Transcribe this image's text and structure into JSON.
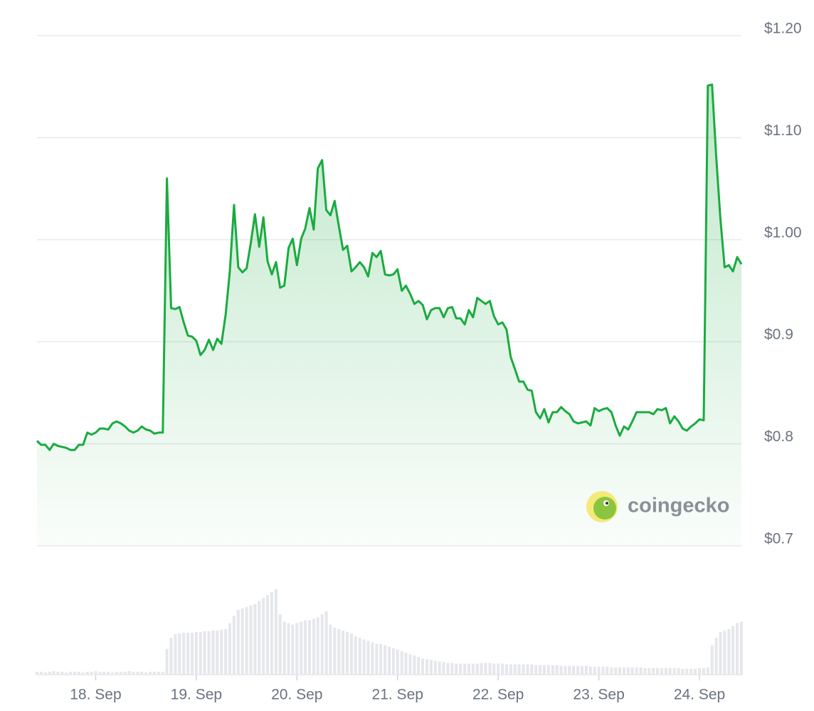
{
  "chart_data": {
    "type": "line",
    "watermark": "coingecko",
    "x": [
      17.417,
      17.458,
      17.5,
      17.542,
      17.583,
      17.625,
      17.667,
      17.708,
      17.75,
      17.792,
      17.833,
      17.875,
      17.917,
      17.958,
      18,
      18.042,
      18.083,
      18.125,
      18.167,
      18.208,
      18.25,
      18.292,
      18.333,
      18.375,
      18.417,
      18.458,
      18.5,
      18.542,
      18.583,
      18.625,
      18.667,
      18.708,
      18.75,
      18.792,
      18.833,
      18.875,
      18.917,
      18.958,
      19,
      19.042,
      19.083,
      19.125,
      19.167,
      19.208,
      19.25,
      19.292,
      19.333,
      19.375,
      19.417,
      19.458,
      19.5,
      19.542,
      19.583,
      19.625,
      19.667,
      19.708,
      19.75,
      19.792,
      19.833,
      19.875,
      19.917,
      19.958,
      20,
      20.042,
      20.083,
      20.125,
      20.167,
      20.208,
      20.25,
      20.292,
      20.333,
      20.375,
      20.417,
      20.458,
      20.5,
      20.542,
      20.583,
      20.625,
      20.667,
      20.708,
      20.75,
      20.792,
      20.833,
      20.875,
      20.917,
      20.958,
      21,
      21.042,
      21.083,
      21.125,
      21.167,
      21.208,
      21.25,
      21.292,
      21.333,
      21.375,
      21.417,
      21.458,
      21.5,
      21.542,
      21.583,
      21.625,
      21.667,
      21.708,
      21.75,
      21.792,
      21.833,
      21.875,
      21.917,
      21.958,
      22,
      22.042,
      22.083,
      22.125,
      22.167,
      22.208,
      22.25,
      22.292,
      22.333,
      22.375,
      22.417,
      22.458,
      22.5,
      22.542,
      22.583,
      22.625,
      22.667,
      22.708,
      22.75,
      22.792,
      22.833,
      22.875,
      22.917,
      22.958,
      23,
      23.042,
      23.083,
      23.125,
      23.167,
      23.208,
      23.25,
      23.292,
      23.333,
      23.375,
      23.417,
      23.458,
      23.5,
      23.542,
      23.583,
      23.625,
      23.667,
      23.708,
      23.75,
      23.792,
      23.833,
      23.875,
      23.917,
      23.958,
      24,
      24.042,
      24.083,
      24.125,
      24.167,
      24.208,
      24.25,
      24.292,
      24.333,
      24.375,
      24.417
    ],
    "series": [
      {
        "color": "#1aab40",
        "values": [
          0.803,
          0.799,
          0.799,
          0.794,
          0.8,
          0.798,
          0.797,
          0.796,
          0.794,
          0.794,
          0.799,
          0.799,
          0.811,
          0.809,
          0.811,
          0.815,
          0.815,
          0.814,
          0.82,
          0.822,
          0.82,
          0.817,
          0.813,
          0.811,
          0.813,
          0.817,
          0.814,
          0.813,
          0.81,
          0.811,
          0.811,
          1.06,
          0.933,
          0.932,
          0.934,
          0.919,
          0.906,
          0.905,
          0.901,
          0.887,
          0.892,
          0.902,
          0.892,
          0.903,
          0.898,
          0.927,
          0.969,
          1.034,
          0.973,
          0.968,
          0.972,
          0.997,
          1.025,
          0.993,
          1.022,
          0.979,
          0.966,
          0.978,
          0.953,
          0.955,
          0.992,
          1.001,
          0.975,
          1.001,
          1.011,
          1.031,
          1.01,
          1.07,
          1.078,
          1.029,
          1.024,
          1.038,
          1.013,
          0.99,
          0.994,
          0.969,
          0.973,
          0.978,
          0.973,
          0.964,
          0.987,
          0.983,
          0.989,
          0.966,
          0.965,
          0.966,
          0.971,
          0.95,
          0.955,
          0.947,
          0.937,
          0.94,
          0.936,
          0.922,
          0.931,
          0.933,
          0.933,
          0.924,
          0.933,
          0.934,
          0.923,
          0.923,
          0.917,
          0.931,
          0.924,
          0.943,
          0.94,
          0.937,
          0.94,
          0.925,
          0.917,
          0.919,
          0.912,
          0.885,
          0.873,
          0.861,
          0.861,
          0.853,
          0.852,
          0.831,
          0.825,
          0.834,
          0.821,
          0.831,
          0.831,
          0.836,
          0.832,
          0.829,
          0.822,
          0.82,
          0.821,
          0.822,
          0.818,
          0.835,
          0.832,
          0.834,
          0.835,
          0.831,
          0.818,
          0.808,
          0.817,
          0.814,
          0.822,
          0.831,
          0.831,
          0.831,
          0.831,
          0.829,
          0.834,
          0.833,
          0.835,
          0.82,
          0.827,
          0.822,
          0.815,
          0.813,
          0.817,
          0.82,
          0.824,
          0.823,
          1.151,
          1.152,
          1.081,
          1.021,
          0.973,
          0.975,
          0.969,
          0.983,
          0.976
        ]
      }
    ],
    "volume": [
      4,
      4,
      3,
      4,
      5,
      4,
      4,
      3,
      4,
      4,
      4,
      3,
      4,
      4,
      5,
      4,
      4,
      4,
      3,
      4,
      4,
      4,
      5,
      4,
      4,
      4,
      3,
      4,
      4,
      4,
      4,
      35,
      50,
      55,
      56,
      57,
      57,
      57,
      58,
      58,
      59,
      59,
      60,
      60,
      61,
      62,
      70,
      80,
      88,
      90,
      92,
      94,
      96,
      100,
      104,
      108,
      112,
      116,
      82,
      72,
      70,
      68,
      70,
      72,
      74,
      74,
      76,
      78,
      82,
      86,
      68,
      64,
      62,
      60,
      58,
      56,
      52,
      50,
      48,
      46,
      44,
      42,
      42,
      40,
      38,
      36,
      34,
      32,
      30,
      28,
      26,
      24,
      22,
      21,
      20,
      19,
      18,
      17,
      16,
      16,
      15,
      15,
      15,
      15,
      15,
      15,
      16,
      16,
      16,
      15,
      15,
      15,
      14,
      14,
      14,
      14,
      14,
      14,
      14,
      13,
      13,
      13,
      13,
      13,
      13,
      12,
      12,
      12,
      12,
      12,
      12,
      12,
      11,
      11,
      11,
      11,
      11,
      10,
      10,
      10,
      10,
      10,
      10,
      10,
      10,
      9,
      9,
      9,
      9,
      9,
      9,
      9,
      9,
      9,
      8,
      8,
      8,
      8,
      9,
      9,
      10,
      40,
      50,
      58,
      60,
      62,
      66,
      70,
      72
    ],
    "volume_color": "#e5e7eb",
    "xlim": [
      17.417,
      24.417
    ],
    "xticks": [
      {
        "value": 18,
        "label": "18. Sep"
      },
      {
        "value": 19,
        "label": "19. Sep"
      },
      {
        "value": 20,
        "label": "20. Sep"
      },
      {
        "value": 21,
        "label": "21. Sep"
      },
      {
        "value": 22,
        "label": "22. Sep"
      },
      {
        "value": 23,
        "label": "23. Sep"
      },
      {
        "value": 24,
        "label": "24. Sep"
      }
    ],
    "ylim": [
      0.7,
      1.2
    ],
    "yticks": [
      {
        "value": 1.2,
        "label": "$1.20"
      },
      {
        "value": 1.1,
        "label": "$1.10"
      },
      {
        "value": 1.0,
        "label": "$1.00"
      },
      {
        "value": 0.9,
        "label": "$0.9"
      },
      {
        "value": 0.8,
        "label": "$0.8"
      },
      {
        "value": 0.7,
        "label": "$0.7"
      }
    ],
    "grid": true
  }
}
